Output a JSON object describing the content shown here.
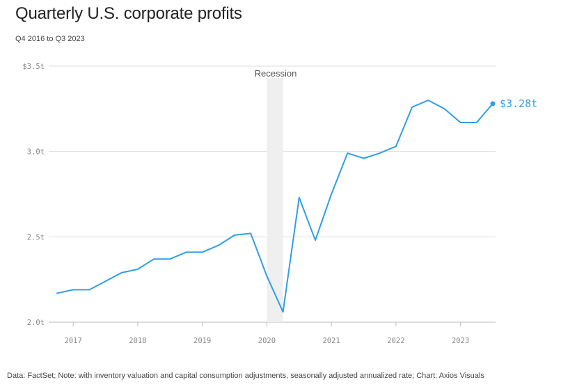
{
  "header": {
    "title": "Quarterly U.S. corporate profits",
    "subtitle": "Q4 2016 to Q3 2023"
  },
  "footer": {
    "text": "Data: FactSet; Note: with inventory valuation and capital consumption adjustments, seasonally adjusted annualized rate; Chart: Axios Visuals"
  },
  "colors": {
    "line": "#2f9ee8",
    "recession_band": "#efefef",
    "grid": "#dddddd"
  },
  "chart_data": {
    "type": "line",
    "title": "Quarterly U.S. corporate profits",
    "subtitle": "Q4 2016 to Q3 2023",
    "xlabel": "",
    "ylabel": "",
    "ylim": [
      2.0,
      3.5
    ],
    "xlim": [
      2016.75,
      2023.5
    ],
    "grid": true,
    "yticks": [
      {
        "value": 2.0,
        "label": "2.0t"
      },
      {
        "value": 2.5,
        "label": "2.5t"
      },
      {
        "value": 3.0,
        "label": "3.0t"
      },
      {
        "value": 3.5,
        "label": "$3.5t"
      }
    ],
    "xticks": [
      {
        "value": 2017,
        "label": "2017"
      },
      {
        "value": 2018,
        "label": "2018"
      },
      {
        "value": 2019,
        "label": "2019"
      },
      {
        "value": 2020,
        "label": "2020"
      },
      {
        "value": 2021,
        "label": "2021"
      },
      {
        "value": 2022,
        "label": "2022"
      },
      {
        "value": 2023,
        "label": "2023"
      }
    ],
    "recession": {
      "label": "Recession",
      "start": 2020.0,
      "end": 2020.25
    },
    "series": [
      {
        "name": "Corporate profits",
        "x": [
          2016.75,
          2017.0,
          2017.25,
          2017.5,
          2017.75,
          2018.0,
          2018.25,
          2018.5,
          2018.75,
          2019.0,
          2019.25,
          2019.5,
          2019.75,
          2020.0,
          2020.25,
          2020.5,
          2020.75,
          2021.0,
          2021.25,
          2021.5,
          2021.75,
          2022.0,
          2022.25,
          2022.5,
          2022.75,
          2023.0,
          2023.25,
          2023.5
        ],
        "values": [
          2.17,
          2.19,
          2.19,
          2.24,
          2.29,
          2.31,
          2.37,
          2.37,
          2.41,
          2.41,
          2.45,
          2.51,
          2.52,
          2.27,
          2.06,
          2.73,
          2.48,
          2.75,
          2.99,
          2.96,
          2.99,
          3.03,
          3.26,
          3.3,
          3.25,
          3.17,
          3.17,
          3.28
        ]
      }
    ],
    "end_label": "$3.28t"
  }
}
